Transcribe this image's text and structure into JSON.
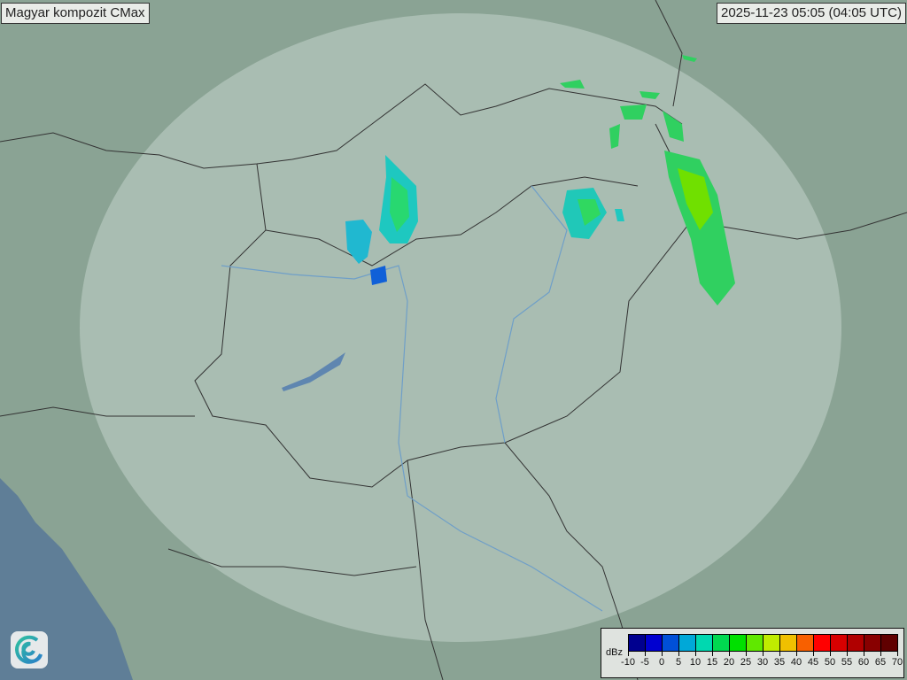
{
  "header": {
    "title": "Magyar kompozit  CMax",
    "timestamp": "2025-11-23 05:05 (04:05 UTC)"
  },
  "legend": {
    "unit": "dBz",
    "ticks": [
      "-10",
      "-5",
      "0",
      "5",
      "10",
      "15",
      "20",
      "25",
      "30",
      "35",
      "40",
      "45",
      "50",
      "55",
      "60",
      "65",
      "70"
    ],
    "colors": [
      "#00008f",
      "#0000d0",
      "#0050d8",
      "#00a8d8",
      "#00d8b0",
      "#00d850",
      "#00e000",
      "#60e800",
      "#c0ec00",
      "#f0c000",
      "#f86000",
      "#ff0000",
      "#d80000",
      "#b00000",
      "#880000",
      "#600000"
    ]
  },
  "map": {
    "land_color": "#8aa394",
    "sea_color": "#5f7e97",
    "radar_coverage_color": "#b8c9c0",
    "border_color": "#333333",
    "river_color": "#6f9fc8"
  },
  "logo": {
    "icon": "spiral-logo-icon"
  }
}
